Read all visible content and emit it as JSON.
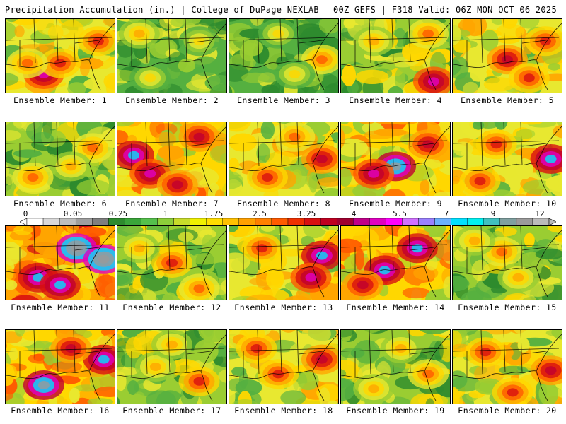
{
  "header": {
    "left": "Precipitation Accumulation (in.) | College of DuPage NEXLAB",
    "right": "00Z GEFS | F318 Valid: 06Z MON OCT 06 2025"
  },
  "panels": [
    {
      "caption": "Ensemble Member: 1",
      "level": 4,
      "hot": [
        [
          0.35,
          0.75,
          5
        ],
        [
          0.5,
          0.6,
          3
        ],
        [
          0.2,
          0.6,
          2
        ],
        [
          0.85,
          0.3,
          3
        ]
      ]
    },
    {
      "caption": "Ensemble Member: 2",
      "level": 2,
      "hot": [
        [
          0.2,
          0.2,
          3
        ],
        [
          0.75,
          0.3,
          2
        ],
        [
          0.3,
          0.8,
          2
        ]
      ]
    },
    {
      "caption": "Ensemble Member: 3",
      "level": 2,
      "hot": [
        [
          0.85,
          0.55,
          4
        ],
        [
          0.45,
          0.2,
          2
        ],
        [
          0.6,
          0.75,
          2
        ]
      ]
    },
    {
      "caption": "Ensemble Member: 4",
      "level": 3,
      "hot": [
        [
          0.85,
          0.85,
          6
        ],
        [
          0.8,
          0.2,
          3
        ],
        [
          0.3,
          0.3,
          2
        ]
      ]
    },
    {
      "caption": "Ensemble Member: 5",
      "level": 4,
      "hot": [
        [
          0.5,
          0.55,
          4
        ],
        [
          0.85,
          0.3,
          3
        ],
        [
          0.7,
          0.8,
          3
        ]
      ]
    },
    {
      "caption": "Ensemble Member: 6",
      "level": 3,
      "hot": [
        [
          0.8,
          0.35,
          3
        ],
        [
          0.25,
          0.75,
          3
        ],
        [
          0.6,
          0.6,
          2
        ]
      ]
    },
    {
      "caption": "Ensemble Member: 7",
      "level": 5,
      "hot": [
        [
          0.15,
          0.45,
          5
        ],
        [
          0.3,
          0.7,
          4
        ],
        [
          0.75,
          0.2,
          3
        ],
        [
          0.55,
          0.85,
          3
        ]
      ]
    },
    {
      "caption": "Ensemble Member: 8",
      "level": 4,
      "hot": [
        [
          0.85,
          0.5,
          4
        ],
        [
          0.35,
          0.75,
          3
        ],
        [
          0.6,
          0.2,
          2
        ]
      ]
    },
    {
      "caption": "Ensemble Member: 9",
      "level": 5,
      "hot": [
        [
          0.5,
          0.6,
          6
        ],
        [
          0.3,
          0.7,
          4
        ],
        [
          0.8,
          0.3,
          3
        ]
      ]
    },
    {
      "caption": "Ensemble Member: 10",
      "level": 4,
      "hot": [
        [
          0.9,
          0.5,
          6
        ],
        [
          0.4,
          0.3,
          3
        ],
        [
          0.25,
          0.8,
          3
        ]
      ]
    },
    {
      "caption": "Ensemble Member: 11",
      "level": 6,
      "hot": [
        [
          0.65,
          0.3,
          6
        ],
        [
          0.9,
          0.45,
          6
        ],
        [
          0.3,
          0.7,
          4
        ],
        [
          0.5,
          0.8,
          4
        ]
      ]
    },
    {
      "caption": "Ensemble Member: 12",
      "level": 3,
      "hot": [
        [
          0.5,
          0.5,
          4
        ],
        [
          0.75,
          0.85,
          3
        ],
        [
          0.2,
          0.3,
          2
        ]
      ]
    },
    {
      "caption": "Ensemble Member: 13",
      "level": 4,
      "hot": [
        [
          0.85,
          0.4,
          6
        ],
        [
          0.75,
          0.7,
          5
        ],
        [
          0.3,
          0.3,
          3
        ]
      ]
    },
    {
      "caption": "Ensemble Member: 14",
      "level": 5,
      "hot": [
        [
          0.4,
          0.6,
          5
        ],
        [
          0.7,
          0.3,
          5
        ],
        [
          0.2,
          0.8,
          3
        ]
      ]
    },
    {
      "caption": "Ensemble Member: 15",
      "level": 3,
      "hot": [
        [
          0.45,
          0.35,
          3
        ],
        [
          0.6,
          0.7,
          2
        ],
        [
          0.2,
          0.2,
          2
        ]
      ]
    },
    {
      "caption": "Ensemble Member: 16",
      "level": 5,
      "hot": [
        [
          0.35,
          0.75,
          6
        ],
        [
          0.9,
          0.4,
          5
        ],
        [
          0.6,
          0.25,
          3
        ]
      ]
    },
    {
      "caption": "Ensemble Member: 17",
      "level": 3,
      "hot": [
        [
          0.75,
          0.7,
          4
        ],
        [
          0.35,
          0.5,
          2
        ],
        [
          0.5,
          0.2,
          2
        ]
      ]
    },
    {
      "caption": "Ensemble Member: 18",
      "level": 4,
      "hot": [
        [
          0.85,
          0.4,
          4
        ],
        [
          0.45,
          0.6,
          3
        ],
        [
          0.25,
          0.25,
          3
        ]
      ]
    },
    {
      "caption": "Ensemble Member: 19",
      "level": 3,
      "hot": [
        [
          0.8,
          0.6,
          3
        ],
        [
          0.3,
          0.8,
          2
        ],
        [
          0.55,
          0.25,
          2
        ]
      ]
    },
    {
      "caption": "Ensemble Member: 20",
      "level": 4,
      "hot": [
        [
          0.9,
          0.55,
          4
        ],
        [
          0.3,
          0.3,
          3
        ],
        [
          0.55,
          0.85,
          3
        ]
      ]
    }
  ],
  "colorbar": {
    "labels": [
      "0",
      "0.05",
      "0.25",
      "1",
      "1.75",
      "2.5",
      "3.25",
      "4",
      "5.5",
      "7",
      "9",
      "12"
    ],
    "colors": [
      "#ffffff",
      "#d9d9d9",
      "#bdbdbd",
      "#9e9e9e",
      "#7f7f7f",
      "#2e8b2e",
      "#3aa53a",
      "#55c04c",
      "#8ccf3a",
      "#c8dc2a",
      "#f0f000",
      "#ffdd00",
      "#ffc000",
      "#ffa000",
      "#ff7f00",
      "#ff5a00",
      "#f03000",
      "#d81010",
      "#c00020",
      "#a00030",
      "#c0008a",
      "#e000c0",
      "#ff00ff",
      "#d070ff",
      "#9a80ff",
      "#6ab0ff",
      "#00e0ff",
      "#00f0f0",
      "#40c0c0",
      "#7fa0a0",
      "#9a9a9a",
      "#bbbbbb"
    ]
  }
}
